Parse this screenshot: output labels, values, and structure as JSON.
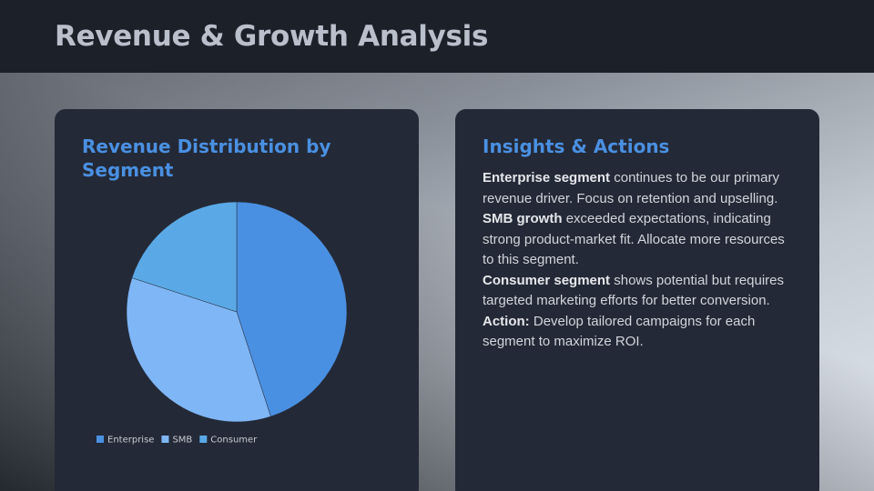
{
  "header": {
    "title": "Revenue & Growth Analysis"
  },
  "chart_data": {
    "type": "pie",
    "title": "Revenue Distribution by Segment",
    "categories": [
      "Enterprise",
      "SMB",
      "Consumer"
    ],
    "values": [
      45,
      35,
      20
    ],
    "colors": [
      "#4a90e2",
      "#7fb6f6",
      "#5aa9e6"
    ],
    "legend": "bottom"
  },
  "insights": {
    "title": "Insights & Actions",
    "items": [
      {
        "lead": "Enterprise segment",
        "text": "continues to be our primary revenue driver. Focus on retention and upselling."
      },
      {
        "lead": "SMB growth",
        "text": "exceeded expectations, indicating strong product-market fit. Allocate more resources to this segment."
      },
      {
        "lead": "Consumer segment",
        "text": "shows potential but requires targeted marketing efforts for better conversion."
      },
      {
        "lead": "Action:",
        "text": "Develop tailored campaigns for each segment to maximize ROI."
      }
    ]
  }
}
